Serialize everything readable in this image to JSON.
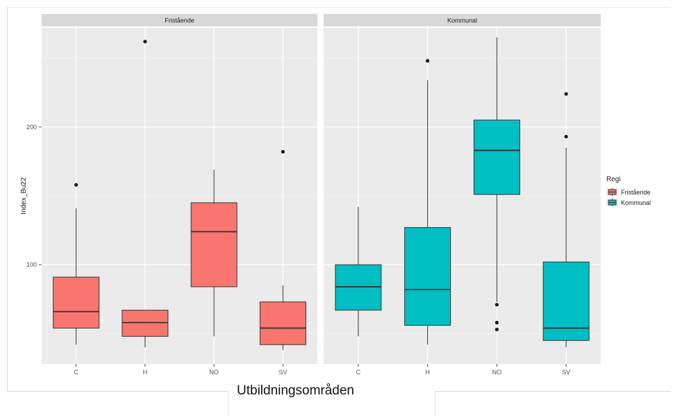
{
  "chart_data": {
    "type": "boxplot",
    "facet_by": "Regi",
    "xlabel": "Utbildningsområden",
    "ylabel": "Index_Bu22",
    "categories": [
      "C",
      "H",
      "NO",
      "SV"
    ],
    "y_ticks": [
      100,
      200
    ],
    "ylim": [
      28,
      272
    ],
    "legend": {
      "title": "Regi",
      "position": "right",
      "entries": [
        {
          "label": "Fristående",
          "color": "#F8766D"
        },
        {
          "label": "Kommunal",
          "color": "#00BFC4"
        }
      ]
    },
    "panels": [
      {
        "strip": "Fristående",
        "fill": "#F8766D",
        "boxes": [
          {
            "category": "C",
            "whisker_low": 42,
            "q1": 54,
            "median": 66,
            "q3": 91,
            "whisker_high": 141,
            "outliers": [
              158
            ]
          },
          {
            "category": "H",
            "whisker_low": 40,
            "q1": 48,
            "median": 58,
            "q3": 67,
            "whisker_high": 67,
            "outliers": [
              262
            ]
          },
          {
            "category": "NO",
            "whisker_low": 48,
            "q1": 84,
            "median": 124,
            "q3": 145,
            "whisker_high": 169,
            "outliers": []
          },
          {
            "category": "SV",
            "whisker_low": 38,
            "q1": 42,
            "median": 54,
            "q3": 73,
            "whisker_high": 85,
            "outliers": [
              182
            ]
          }
        ]
      },
      {
        "strip": "Kommunal",
        "fill": "#00BFC4",
        "boxes": [
          {
            "category": "C",
            "whisker_low": 48,
            "q1": 67,
            "median": 84,
            "q3": 100,
            "whisker_high": 142,
            "outliers": []
          },
          {
            "category": "H",
            "whisker_low": 42,
            "q1": 56,
            "median": 82,
            "q3": 127,
            "whisker_high": 234,
            "outliers": [
              248
            ]
          },
          {
            "category": "NO",
            "whisker_low": 73,
            "q1": 151,
            "median": 183,
            "q3": 205,
            "whisker_high": 265,
            "outliers": [
              71,
              58,
              53
            ]
          },
          {
            "category": "SV",
            "whisker_low": 40,
            "q1": 45,
            "median": 54,
            "q3": 102,
            "whisker_high": 185,
            "outliers": [
              193,
              224
            ]
          }
        ]
      }
    ]
  }
}
